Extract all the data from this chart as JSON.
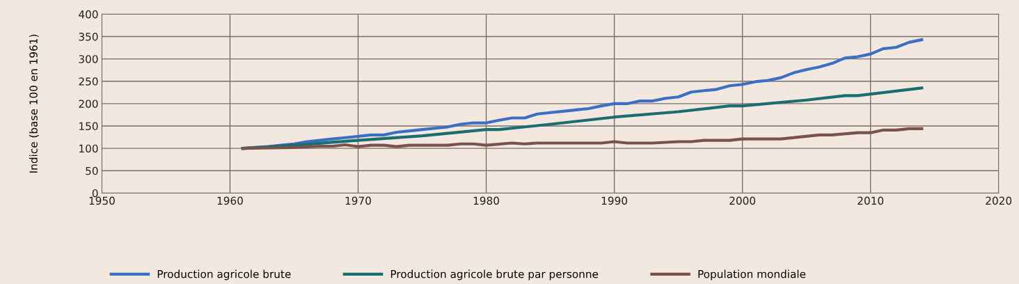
{
  "chart_data": {
    "type": "line",
    "ylabel": "Indice (base 100 en 1961)",
    "xlim": [
      1950,
      2020
    ],
    "xticks": [
      1950,
      1960,
      1970,
      1980,
      1990,
      2000,
      2010,
      2020
    ],
    "ylim": [
      0,
      400
    ],
    "yticks": [
      0,
      50,
      100,
      150,
      200,
      250,
      300,
      350,
      400
    ],
    "grid": true,
    "legend": "bottom",
    "marker": "none",
    "line_style": "solid",
    "series": [
      {
        "name": "Production agricole brute",
        "color": "#3a6fc4",
        "x": [
          1961,
          1962,
          1963,
          1964,
          1965,
          1966,
          1967,
          1968,
          1969,
          1970,
          1971,
          1972,
          1973,
          1974,
          1975,
          1976,
          1977,
          1978,
          1979,
          1980,
          1981,
          1982,
          1983,
          1984,
          1985,
          1986,
          1987,
          1988,
          1989,
          1990,
          1991,
          1992,
          1993,
          1994,
          1995,
          1996,
          1997,
          1998,
          1999,
          2000,
          2001,
          2002,
          2003,
          2004,
          2005,
          2006,
          2007,
          2008,
          2009,
          2010,
          2011,
          2012,
          2013,
          2014
        ],
        "values": [
          100,
          102,
          104,
          107,
          110,
          115,
          118,
          121,
          124,
          127,
          130,
          130,
          136,
          139,
          142,
          145,
          148,
          154,
          157,
          157,
          163,
          168,
          168,
          177,
          180,
          183,
          186,
          189,
          195,
          200,
          200,
          206,
          206,
          212,
          215,
          226,
          229,
          232,
          240,
          243,
          249,
          252,
          258,
          269,
          276,
          282,
          290,
          302,
          305,
          311,
          323,
          326,
          337,
          343
        ]
      },
      {
        "name": "Production agricole brute par personne",
        "color": "#1a6e6e",
        "x": [
          1961,
          1965,
          1970,
          1975,
          1980,
          1981,
          1985,
          1990,
          1995,
          1999,
          2000,
          2005,
          2008,
          2009,
          2014
        ],
        "values": [
          100,
          107,
          118,
          128,
          142,
          142,
          154,
          170,
          182,
          195,
          195,
          208,
          218,
          218,
          235
        ]
      },
      {
        "name": "Population mondiale",
        "color": "#7a524c",
        "x": [
          1961,
          1965,
          1967,
          1968,
          1969,
          1970,
          1971,
          1972,
          1973,
          1974,
          1977,
          1978,
          1979,
          1980,
          1982,
          1983,
          1984,
          1989,
          1990,
          1991,
          1993,
          1995,
          1996,
          1997,
          1999,
          2000,
          2003,
          2006,
          2007,
          2009,
          2010,
          2011,
          2012,
          2013,
          2014
        ],
        "values": [
          100,
          102,
          105,
          105,
          108,
          104,
          107,
          107,
          104,
          107,
          107,
          110,
          110,
          107,
          112,
          110,
          112,
          112,
          115,
          112,
          112,
          115,
          115,
          118,
          118,
          121,
          121,
          130,
          130,
          135,
          135,
          141,
          141,
          144,
          144
        ]
      }
    ]
  }
}
